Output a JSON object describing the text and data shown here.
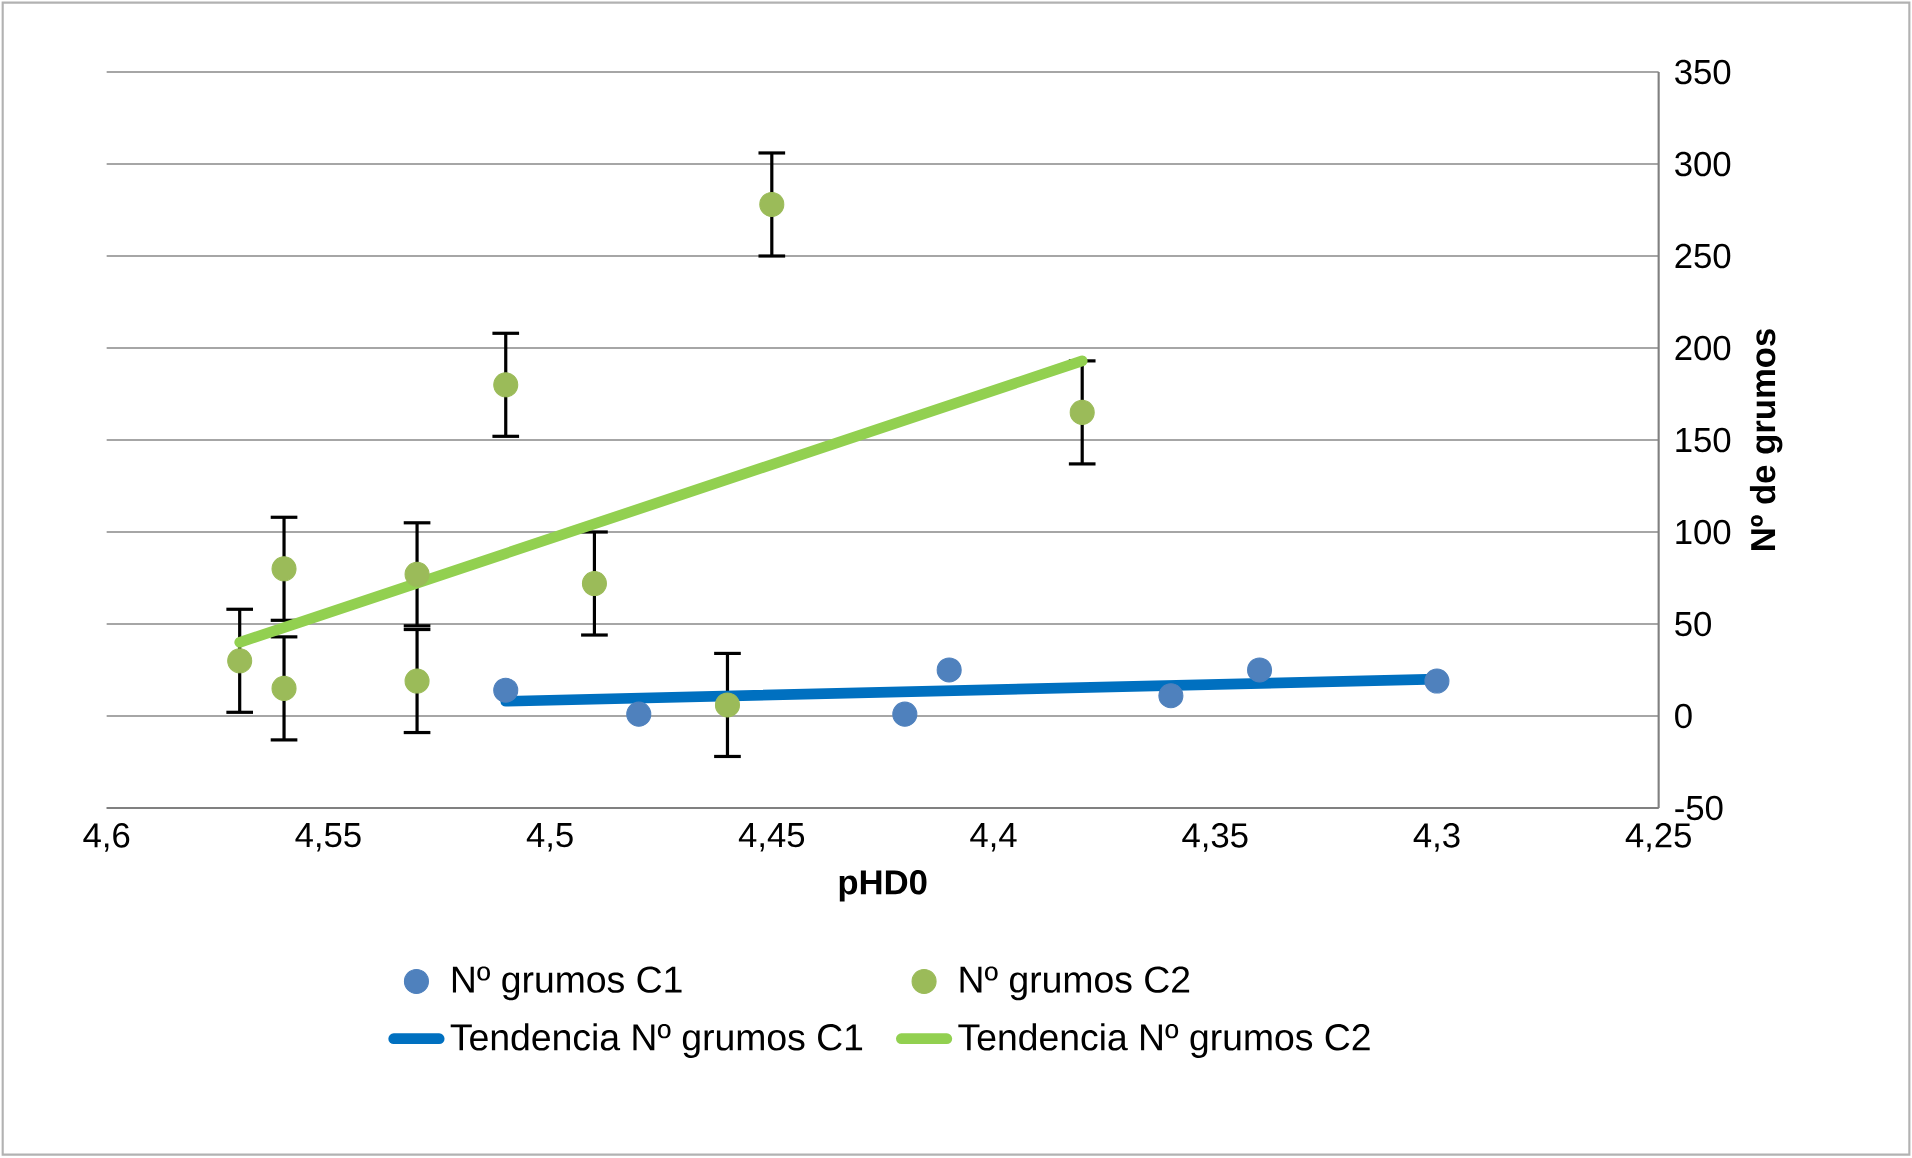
{
  "chart_data": {
    "type": "scatter",
    "xlabel": "pHD0",
    "ylabel": "Nº de grumos",
    "xlim": [
      4.6,
      4.25
    ],
    "xticks": [
      {
        "value": 4.6,
        "label": "4,6"
      },
      {
        "value": 4.55,
        "label": "4,55"
      },
      {
        "value": 4.5,
        "label": "4,5"
      },
      {
        "value": 4.45,
        "label": "4,45"
      },
      {
        "value": 4.4,
        "label": "4,4"
      },
      {
        "value": 4.35,
        "label": "4,35"
      },
      {
        "value": 4.3,
        "label": "4,3"
      },
      {
        "value": 4.25,
        "label": "4,25"
      }
    ],
    "ylim": [
      -50,
      350
    ],
    "yticks": [
      -50,
      0,
      50,
      100,
      150,
      200,
      250,
      300,
      350
    ],
    "grid": "y",
    "legend": "bottom",
    "series": [
      {
        "name": "Nº grumos C1",
        "marker": "circle",
        "color": "#4f81bd",
        "x": [
          4.51,
          4.48,
          4.42,
          4.41,
          4.36,
          4.34,
          4.3
        ],
        "values": [
          14,
          1,
          1,
          25,
          11,
          25,
          19
        ]
      },
      {
        "name": "Nº grumos C2",
        "marker": "circle",
        "color": "#9bbb59",
        "x": [
          4.57,
          4.56,
          4.56,
          4.53,
          4.53,
          4.51,
          4.49,
          4.46,
          4.45,
          4.38
        ],
        "values": [
          30,
          80,
          15,
          77,
          19,
          180,
          72,
          6,
          278,
          165
        ],
        "errors": [
          28,
          28,
          28,
          28,
          28,
          28,
          28,
          28,
          28,
          28
        ]
      },
      {
        "name": "Tendencia Nº grumos C1",
        "type": "line",
        "marker": "none",
        "color": "#0070c0",
        "x": [
          4.51,
          4.3
        ],
        "values": [
          8,
          20
        ]
      },
      {
        "name": "Tendencia Nº grumos C2",
        "type": "line",
        "marker": "none",
        "color": "#92d050",
        "x": [
          4.57,
          4.38
        ],
        "values": [
          40,
          193
        ]
      }
    ]
  }
}
